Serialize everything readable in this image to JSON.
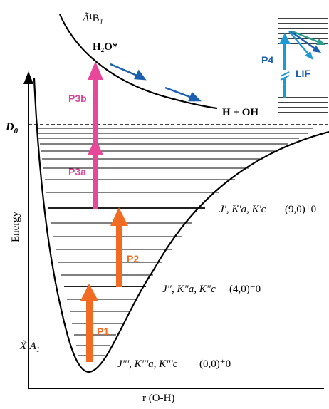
{
  "colors": {
    "p1": "#f26b22",
    "p2": "#f26b22",
    "p3": "#e8489a",
    "p4": "#1b9ad6",
    "lif": "#1b9ad6",
    "curve": "#000000",
    "pink_label": "#d64a9a",
    "blue_label": "#1b5fb0"
  },
  "axes": {
    "y_label": "Energy",
    "x_label": "r (O-H)"
  },
  "labels": {
    "d0": "D",
    "d0_sub": "0",
    "excited_state_tilde": "Ã",
    "excited_state": "¹B",
    "excited_state_sub": "1",
    "h2o_star": "H₂O*",
    "dissociation": "H +  OH",
    "ground_state": "X̃¹A",
    "ground_state_sub": "1",
    "level_9": "J', K'a, K'c",
    "level_9_vib": "(9,0)⁺0",
    "level_4": "J\", K\"a, K\"c",
    "level_4_vib": "(4,0)⁻0",
    "level_0": "J\"', K\"'a, K\"'c",
    "level_0_vib": "(0,0)⁺0"
  },
  "transitions": {
    "p1": "P1",
    "p2": "P2",
    "p3a": "P3a",
    "p3b": "P3b",
    "p4": "P4",
    "lif": "LIF"
  }
}
